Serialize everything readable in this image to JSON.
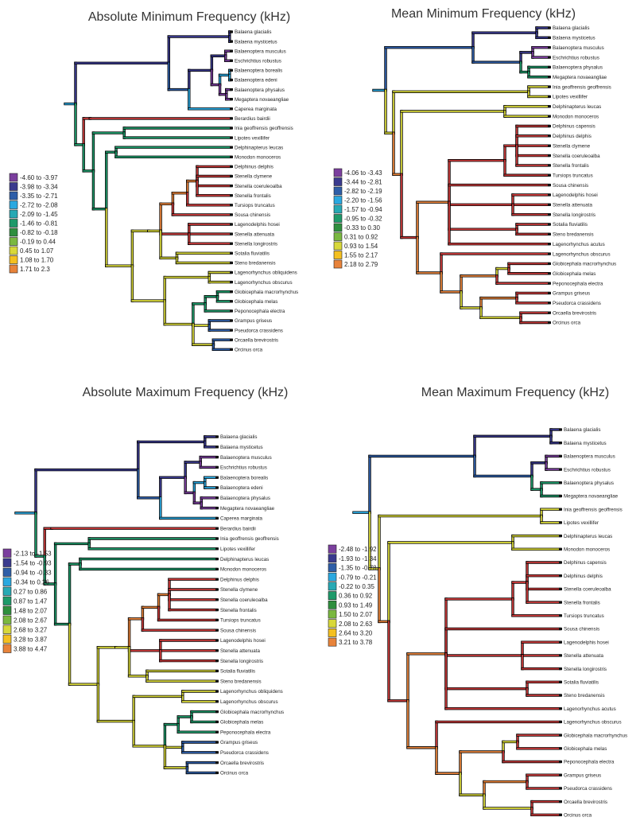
{
  "panels": [
    {
      "title": "Absolute Minimum Frequency (kHz)",
      "legend": [
        "-4.60  to -3.97",
        "-3.98  to -3.34",
        "-3.35  to -2.71",
        "-2.72  to -2.08",
        "-2.09  to -1.45",
        "-1.46  to -0.81",
        "-0.82  to -0.18",
        "-0.19  to 0.44",
        "0.45  to 1.07",
        "1.08  to 1.70",
        "1.71  to 2.3"
      ],
      "tips": [
        "Balaena glacialis",
        "Balaena mysticetus",
        "Balaenoptera musculus",
        "Eschrichtius robustus",
        "Balaenoptera borealis",
        "Balaenoptera edeni",
        "Balaenoptera physalus",
        "Megaptera novaeangliae",
        "Caperea marginata",
        "Berardius bairdii",
        "Inia geoffrensis geoffrensis",
        "Lipotes vexillifer",
        "Delphinapterus leucas",
        "Monodon monoceros",
        "Delphinus delphis",
        "Stenella clymene",
        "Stenella coeruleoalba",
        "Stenella frontalis",
        "Tursiops truncatus",
        "Sousa chinensis",
        "Lagenodelphis hosei",
        "Stenella attenuata",
        "Stenella longirostris",
        "Sotalia fluviatilis",
        "Steno bredanensis",
        "Lagenorhynchus obliquidens",
        "Lagenorhynchus obscurus",
        "Globicephala macrorhynchus",
        "Globicephala melas",
        "Peponocephala electra",
        "Grampus griseus",
        "Pseudorca crassidens",
        "Orcaella brevirostris",
        "Orcinus orca"
      ]
    },
    {
      "title": "Mean Minimum Frequency (kHz)",
      "legend": [
        "-4.06  to -3.43",
        "-3.44  to -2.81",
        "-2.82  to -2.19",
        "-2.20  to -1.56",
        "-1.57  to -0.94",
        "-0.95  to -0.32",
        "-0.33  to 0.30",
        "0.31  to 0.92",
        "0.93  to 1.54",
        "1.55  to 2.17",
        "2.18  to 2.79"
      ],
      "tips": [
        "Balaena glacialis",
        "Balaena mysticetus",
        "Balaenoptera musculus",
        "Eschrichtius robustus",
        "Balaenoptera physalus",
        "Megaptera novaeangliae",
        "Inia geoffrensis geoffrensis",
        "Lipotes vexillifer",
        "Delphinapterus leucas",
        "Monodon monoceros",
        "Delphinus capensis",
        "Delphinus delphis",
        "Stenella clymene",
        "Stenella coeruleoalba",
        "Stenella frontalis",
        "Tursiops truncatus",
        "Sousa chinensis",
        "Lagenodelphis hosei",
        "Stenella attenuata",
        "Stenella longirostris",
        "Sotalia fluviatilis",
        "Steno bredanensis",
        "Lagenorhynchus acutus",
        "Lagenorhynchus obscurus",
        "Globicephala macrorhynchus",
        "Globicephala melas",
        "Peponocephala electra",
        "Grampus griseus",
        "Pseudorca crassidens",
        "Orcaella brevirostris",
        "Orcinus orca"
      ]
    },
    {
      "title": "Absolute Maximum Frequency (kHz)",
      "legend": [
        "-2.13  to -1.53",
        "-1.54  to -0.93",
        "-0.94  to -0.33",
        "-0.34  to 0.26",
        "0.27  to 0.86",
        "0.87  to 1.47",
        "1.48  to 2.07",
        "2.08  to 2.67",
        "2.68  to 3.27",
        "3.28  to 3.87",
        "3.88  to 4.47"
      ],
      "tips": [
        "Balaena glacialis",
        "Balaena mysticetus",
        "Balaenoptera musculus",
        "Eschrichtius robustus",
        "Balaenoptera borealis",
        "Balaenoptera edeni",
        "Balaenoptera physalus",
        "Megaptera novaeangliae",
        "Caperea marginata",
        "Berardius bairdii",
        "Inia geoffrensis geoffrensis",
        "Lipotes vexillifer",
        "Delphinapterus leucas",
        "Monodon monoceros",
        "Delphinus delphis",
        "Stenella clymene",
        "Stenella coeruleoalba",
        "Stenella frontalis",
        "Tursiops truncatus",
        "Sousa chinensis",
        "Lagenodelphis hosei",
        "Stenella attenuata",
        "Stenella longirostris",
        "Sotalia fluviatilis",
        "Steno bredanensis",
        "Lagenorhynchus obliquidens",
        "Lagenorhynchus obscurus",
        "Globicephala macrorhynchus",
        "Globicephala melas",
        "Peponocephala electra",
        "Grampus griseus",
        "Pseudorca crassidens",
        "Orcaella brevirostris",
        "Orcinus orca"
      ]
    },
    {
      "title": "Mean Maximum Frequency (kHz)",
      "legend": [
        "-2.48  to -1.92",
        "-1.93  to -1.34",
        "-1.35  to -0.78",
        "-0.79  to -0.21",
        "-0.22  to  0.35",
        "0.36  to 0.92",
        "0.93  to 1.49",
        "1.50  to 2.07",
        "2.08  to 2.63",
        "2.64  to 3.20",
        "3.21  to 3.78"
      ],
      "tips": [
        "Balaena glacialis",
        "Balaena mysticetus",
        "Balaenoptera musculus",
        "Eschrichtius robustus",
        "Balaenoptera physalus",
        "Megaptera novaeangliae",
        "Inia geoffrensis geoffrensis",
        "Lipotes vexillifer",
        "Delphinapterus leucas",
        "Monodon monoceros",
        "Delphinus capensis",
        "Delphinus delphis",
        "Stenella coeruleoalba",
        "Stenella frontalis",
        "Tursiops truncatus",
        "Sousa chinensis",
        "Lagenodelphis hosei",
        "Stenella attenuata",
        "Stenella longirostris",
        "Sotalia fluviatilis",
        "Steno bredanensis",
        "Lagenorhynchus acutus",
        "Lagenorhynchus obscurus",
        "Globicephala macrorhynchus",
        "Globicephala melas",
        "Peponocephala electra",
        "Grampus griseus",
        "Pseudorca crassidens",
        "Orcaella brevirostris",
        "Orcinus orca"
      ]
    }
  ],
  "palette": [
    "#7b3f9e",
    "#3a3a8e",
    "#2e5ea8",
    "#2aa8e0",
    "#27a9b4",
    "#1e9a6a",
    "#2f8f3e",
    "#7ab840",
    "#d8d83a",
    "#f4c020",
    "#e8833a"
  ],
  "branch_colors": {
    "root": "#2aa8e0",
    "outgroup": "#27a9b4",
    "ingroup": "#d8d83a",
    "deep": "#e8833a",
    "red": "#c83a3a"
  }
}
